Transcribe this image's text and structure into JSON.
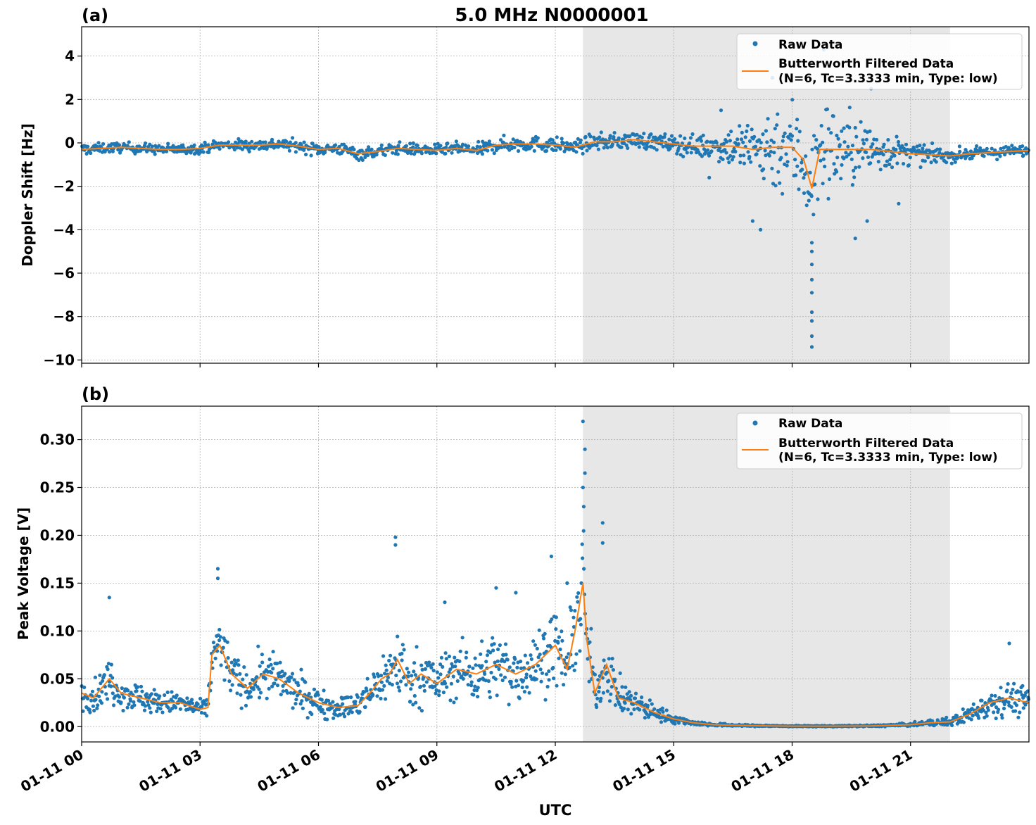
{
  "figure": {
    "title": "5.0 MHz N0000001",
    "xlabel": "UTC",
    "shade_span_hours": [
      12.7,
      22.0
    ],
    "colors": {
      "raw": "#1f77b4",
      "filtered": "#ff7f0e",
      "shade": "#e7e7e7",
      "grid": "#b0b0b0"
    }
  },
  "chart_data": [
    {
      "type": "scatter",
      "panel_label": "(a)",
      "ylabel": "Doppler Shift [Hz]",
      "xlim_hours": [
        0,
        24
      ],
      "ylim": [
        -10.15,
        5.35
      ],
      "yticks": [
        4,
        2,
        0,
        -2,
        -4,
        -6,
        -8,
        -10
      ],
      "ytick_labels": [
        "4",
        "2",
        "0",
        "−2",
        "−4",
        "−6",
        "−8",
        "−10"
      ],
      "xticks_hours": [
        0,
        3,
        6,
        9,
        12,
        15,
        18,
        21
      ],
      "xtick_labels": [
        "01-11 00",
        "01-11 03",
        "01-11 06",
        "01-11 09",
        "01-11 12",
        "01-11 15",
        "01-11 18",
        "01-11 21"
      ],
      "grid": true,
      "legend_placement": "upper right",
      "legend": {
        "raw_label": "Raw Data",
        "filtered_label_line1": "Butterworth Filtered Data",
        "filtered_label_line2": "(N=6, Tc=3.3333 min, Type: low)"
      },
      "series": [
        {
          "name": "Butterworth Filtered Data",
          "kind": "line",
          "x_hours": [
            0,
            0.5,
            1,
            1.5,
            2,
            2.5,
            3,
            3.5,
            4,
            4.5,
            5,
            5.5,
            6,
            6.5,
            7,
            7.5,
            8,
            8.5,
            9,
            9.5,
            10,
            10.5,
            11,
            11.5,
            12,
            12.5,
            13,
            13.5,
            14,
            14.5,
            15,
            15.5,
            16,
            16.5,
            17,
            17.5,
            18,
            18.3,
            18.5,
            18.7,
            19,
            19.5,
            20,
            20.5,
            21,
            21.5,
            22,
            22.5,
            23,
            23.5,
            24
          ],
          "y": [
            -0.3,
            -0.25,
            -0.2,
            -0.25,
            -0.3,
            -0.3,
            -0.25,
            -0.1,
            -0.1,
            -0.1,
            -0.05,
            -0.15,
            -0.3,
            -0.25,
            -0.5,
            -0.4,
            -0.25,
            -0.3,
            -0.35,
            -0.25,
            -0.35,
            -0.1,
            -0.05,
            -0.05,
            -0.1,
            -0.2,
            0.05,
            0.05,
            0.15,
            0.05,
            -0.05,
            -0.15,
            -0.15,
            -0.15,
            -0.3,
            -0.2,
            -0.2,
            -0.8,
            -2.1,
            -0.3,
            -0.3,
            -0.3,
            -0.3,
            -0.4,
            -0.5,
            -0.55,
            -0.6,
            -0.5,
            -0.45,
            -0.4,
            -0.35
          ],
          "spread": [
            0.35,
            0.3,
            0.3,
            0.3,
            0.3,
            0.3,
            0.3,
            0.3,
            0.35,
            0.35,
            0.35,
            0.35,
            0.35,
            0.35,
            0.4,
            0.35,
            0.35,
            0.35,
            0.35,
            0.35,
            0.4,
            0.45,
            0.45,
            0.45,
            0.45,
            0.45,
            0.45,
            0.5,
            0.5,
            0.5,
            0.55,
            0.65,
            0.8,
            1.3,
            2.0,
            2.6,
            3.0,
            3.2,
            3.3,
            3.1,
            2.8,
            2.2,
            1.6,
            1.0,
            0.7,
            0.5,
            0.4,
            0.35,
            0.35,
            0.35,
            0.35
          ]
        },
        {
          "name": "Raw Data",
          "kind": "points",
          "outliers": [
            {
              "x": 18.5,
              "y": -9.4
            },
            {
              "x": 18.5,
              "y": -8.9
            },
            {
              "x": 18.5,
              "y": -8.2
            },
            {
              "x": 18.5,
              "y": -7.8
            },
            {
              "x": 18.5,
              "y": -6.9
            },
            {
              "x": 18.5,
              "y": -6.3
            },
            {
              "x": 18.5,
              "y": -5.6
            },
            {
              "x": 18.5,
              "y": -5.0
            },
            {
              "x": 18.5,
              "y": -4.6
            },
            {
              "x": 17.2,
              "y": -4.0
            },
            {
              "x": 17.0,
              "y": -3.6
            },
            {
              "x": 19.6,
              "y": -4.4
            },
            {
              "x": 19.9,
              "y": -3.6
            },
            {
              "x": 20.7,
              "y": -2.8
            },
            {
              "x": 18.8,
              "y": 4.3
            },
            {
              "x": 16.2,
              "y": 1.5
            },
            {
              "x": 20.0,
              "y": 2.5
            },
            {
              "x": 15.9,
              "y": -1.6
            },
            {
              "x": 17.5,
              "y": 3.0
            }
          ]
        }
      ]
    },
    {
      "type": "scatter",
      "panel_label": "(b)",
      "ylabel": "Peak Voltage [V]",
      "xlim_hours": [
        0,
        24
      ],
      "ylim": [
        -0.016,
        0.335
      ],
      "yticks": [
        0.0,
        0.05,
        0.1,
        0.15,
        0.2,
        0.25,
        0.3
      ],
      "ytick_labels": [
        "0.00",
        "0.05",
        "0.10",
        "0.15",
        "0.20",
        "0.25",
        "0.30"
      ],
      "xticks_hours": [
        0,
        3,
        6,
        9,
        12,
        15,
        18,
        21
      ],
      "xtick_labels": [
        "01-11 00",
        "01-11 03",
        "01-11 06",
        "01-11 09",
        "01-11 12",
        "01-11 15",
        "01-11 18",
        "01-11 21"
      ],
      "grid": true,
      "legend_placement": "upper right",
      "legend": {
        "raw_label": "Raw Data",
        "filtered_label_line1": "Butterworth Filtered Data",
        "filtered_label_line2": "(N=6, Tc=3.3333 min, Type: low)"
      },
      "series": [
        {
          "name": "Butterworth Filtered Data",
          "kind": "line",
          "x_hours": [
            0,
            0.3,
            0.7,
            1.0,
            1.5,
            2.0,
            2.5,
            3.0,
            3.2,
            3.3,
            3.5,
            3.8,
            4.2,
            4.6,
            5.0,
            5.5,
            6.0,
            6.5,
            7.0,
            7.3,
            7.6,
            7.8,
            8.0,
            8.3,
            8.6,
            9.0,
            9.5,
            10.0,
            10.5,
            11.0,
            11.5,
            12.0,
            12.3,
            12.5,
            12.7,
            12.8,
            13.0,
            13.3,
            13.6,
            14.0,
            14.5,
            15.0,
            15.5,
            16.0,
            17.0,
            18.0,
            19.0,
            20.0,
            21.0,
            21.5,
            22.0,
            22.5,
            23.0,
            23.5,
            24.0
          ],
          "y": [
            0.035,
            0.03,
            0.05,
            0.035,
            0.03,
            0.025,
            0.025,
            0.018,
            0.02,
            0.075,
            0.085,
            0.055,
            0.04,
            0.055,
            0.05,
            0.035,
            0.025,
            0.02,
            0.022,
            0.035,
            0.05,
            0.055,
            0.07,
            0.045,
            0.055,
            0.045,
            0.06,
            0.055,
            0.065,
            0.055,
            0.065,
            0.085,
            0.06,
            0.1,
            0.15,
            0.09,
            0.035,
            0.065,
            0.03,
            0.025,
            0.015,
            0.008,
            0.004,
            0.002,
            0.001,
            0.0005,
            0.0005,
            0.0008,
            0.002,
            0.004,
            0.005,
            0.013,
            0.025,
            0.03,
            0.025
          ],
          "spread": [
            0.02,
            0.02,
            0.03,
            0.02,
            0.02,
            0.015,
            0.015,
            0.012,
            0.015,
            0.04,
            0.04,
            0.03,
            0.025,
            0.035,
            0.03,
            0.025,
            0.02,
            0.015,
            0.018,
            0.025,
            0.035,
            0.04,
            0.05,
            0.035,
            0.04,
            0.035,
            0.04,
            0.04,
            0.045,
            0.04,
            0.045,
            0.05,
            0.04,
            0.06,
            0.09,
            0.06,
            0.03,
            0.04,
            0.025,
            0.02,
            0.012,
            0.006,
            0.003,
            0.002,
            0.001,
            0.0008,
            0.0008,
            0.001,
            0.002,
            0.004,
            0.006,
            0.012,
            0.02,
            0.022,
            0.02
          ]
        },
        {
          "name": "Raw Data",
          "kind": "points",
          "outliers": [
            {
              "x": 12.7,
              "y": 0.319
            },
            {
              "x": 12.75,
              "y": 0.29
            },
            {
              "x": 12.75,
              "y": 0.265
            },
            {
              "x": 12.7,
              "y": 0.25
            },
            {
              "x": 12.72,
              "y": 0.23
            },
            {
              "x": 13.2,
              "y": 0.213
            },
            {
              "x": 13.2,
              "y": 0.192
            },
            {
              "x": 7.95,
              "y": 0.198
            },
            {
              "x": 7.95,
              "y": 0.19
            },
            {
              "x": 11.9,
              "y": 0.178
            },
            {
              "x": 3.45,
              "y": 0.165
            },
            {
              "x": 3.45,
              "y": 0.155
            },
            {
              "x": 0.7,
              "y": 0.135
            },
            {
              "x": 12.3,
              "y": 0.15
            },
            {
              "x": 10.5,
              "y": 0.145
            },
            {
              "x": 23.5,
              "y": 0.087
            },
            {
              "x": 9.2,
              "y": 0.13
            },
            {
              "x": 11.0,
              "y": 0.14
            }
          ]
        }
      ]
    }
  ]
}
